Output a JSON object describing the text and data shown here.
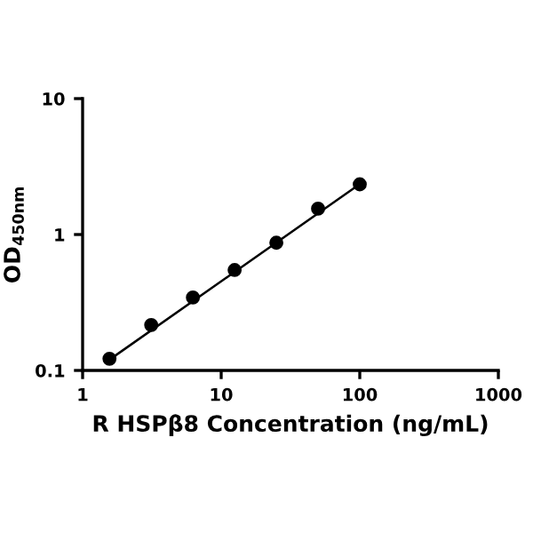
{
  "chart_data": {
    "type": "scatter",
    "xlabel": "R HSPβ8 Concentration (ng/mL)",
    "ylabel": "OD$_{450nm}$",
    "log": "xy",
    "xlim": [
      1,
      1000
    ],
    "xticks": [
      1,
      10,
      100,
      1000
    ],
    "ylim": [
      0.1,
      10
    ],
    "yticks": [
      0.1,
      1,
      10
    ],
    "grid": false,
    "series": [
      {
        "color": "#000000",
        "marker": "circle",
        "x": [
          1.5625,
          3.125,
          6.25,
          12.5,
          25,
          50,
          100
        ],
        "values": [
          0.122,
          0.216,
          0.344,
          0.548,
          0.87,
          1.55,
          2.34
        ]
      },
      {
        "type": "line",
        "color": "#000000",
        "line_style": "solid",
        "x": [
          1.5625,
          100
        ],
        "values": [
          0.12,
          2.35
        ]
      }
    ]
  }
}
